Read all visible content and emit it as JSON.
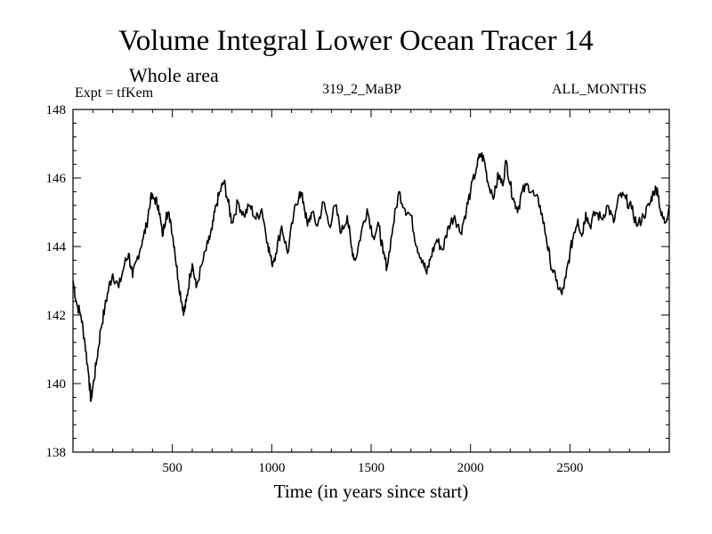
{
  "chart_data": {
    "type": "line",
    "title": "Volume Integral Lower Ocean Tracer 14",
    "subtitle": "Whole area",
    "annotations": {
      "left": "Expt = tfKem",
      "center": "319_2_MaBP",
      "right": "ALL_MONTHS"
    },
    "xlabel": "Time (in years since start)",
    "ylabel": "",
    "xlim": [
      0,
      3000
    ],
    "ylim": [
      138,
      148
    ],
    "xticks": [
      500,
      1000,
      1500,
      2000,
      2500
    ],
    "yticks": [
      138,
      140,
      142,
      144,
      146,
      148
    ],
    "grid": false,
    "series": [
      {
        "x": [
          0,
          20,
          40,
          60,
          80,
          90,
          100,
          120,
          140,
          160,
          180,
          200,
          230,
          260,
          280,
          300,
          320,
          350,
          370,
          390,
          410,
          430,
          450,
          470,
          490,
          510,
          530,
          550,
          560,
          570,
          590,
          600,
          620,
          650,
          680,
          700,
          720,
          740,
          760,
          780,
          800,
          830,
          860,
          890,
          920,
          950,
          980,
          1000,
          1020,
          1050,
          1080,
          1110,
          1140,
          1160,
          1180,
          1200,
          1230,
          1260,
          1290,
          1320,
          1350,
          1380,
          1400,
          1420,
          1450,
          1480,
          1510,
          1540,
          1560,
          1580,
          1610,
          1640,
          1670,
          1700,
          1730,
          1760,
          1780,
          1800,
          1830,
          1860,
          1890,
          1920,
          1950,
          1980,
          2000,
          2030,
          2050,
          2070,
          2090,
          2120,
          2140,
          2160,
          2180,
          2200,
          2220,
          2240,
          2260,
          2290,
          2320,
          2350,
          2380,
          2400,
          2430,
          2460,
          2480,
          2500,
          2520,
          2540,
          2560,
          2580,
          2600,
          2630,
          2660,
          2690,
          2720,
          2750,
          2780,
          2810,
          2840,
          2870,
          2900,
          2920,
          2940,
          2960,
          2980,
          3000
        ],
        "values": [
          143.0,
          142.3,
          142.0,
          141.2,
          140.2,
          139.5,
          139.9,
          140.7,
          141.6,
          142.2,
          142.8,
          143.2,
          142.8,
          143.5,
          143.8,
          143.1,
          143.6,
          144.2,
          144.6,
          145.4,
          145.4,
          145.2,
          144.3,
          145.0,
          144.8,
          144.0,
          143.0,
          142.3,
          142.1,
          142.4,
          143.2,
          143.5,
          142.8,
          143.5,
          144.1,
          144.5,
          145.2,
          145.6,
          145.9,
          145.3,
          144.7,
          145.3,
          144.9,
          145.2,
          144.8,
          145.1,
          144.1,
          143.5,
          143.8,
          144.6,
          143.8,
          144.9,
          145.6,
          145.3,
          144.6,
          145.0,
          144.6,
          145.3,
          144.6,
          145.2,
          144.4,
          144.9,
          144.0,
          143.6,
          144.4,
          145.1,
          144.3,
          144.6,
          143.8,
          143.4,
          144.6,
          145.6,
          145.1,
          144.9,
          144.0,
          143.6,
          143.2,
          143.7,
          144.2,
          143.9,
          144.6,
          144.9,
          144.4,
          145.1,
          145.6,
          146.3,
          146.7,
          146.5,
          145.8,
          145.5,
          146.1,
          145.8,
          146.5,
          145.8,
          145.3,
          145.1,
          145.6,
          145.8,
          145.5,
          145.2,
          144.3,
          143.6,
          143.0,
          142.6,
          143.1,
          143.8,
          144.4,
          144.8,
          144.3,
          145.0,
          144.6,
          145.0,
          144.8,
          145.2,
          144.7,
          145.5,
          145.4,
          145.1,
          144.6,
          144.9,
          145.2,
          145.6,
          145.7,
          144.9,
          144.7,
          145.2
        ]
      }
    ]
  }
}
